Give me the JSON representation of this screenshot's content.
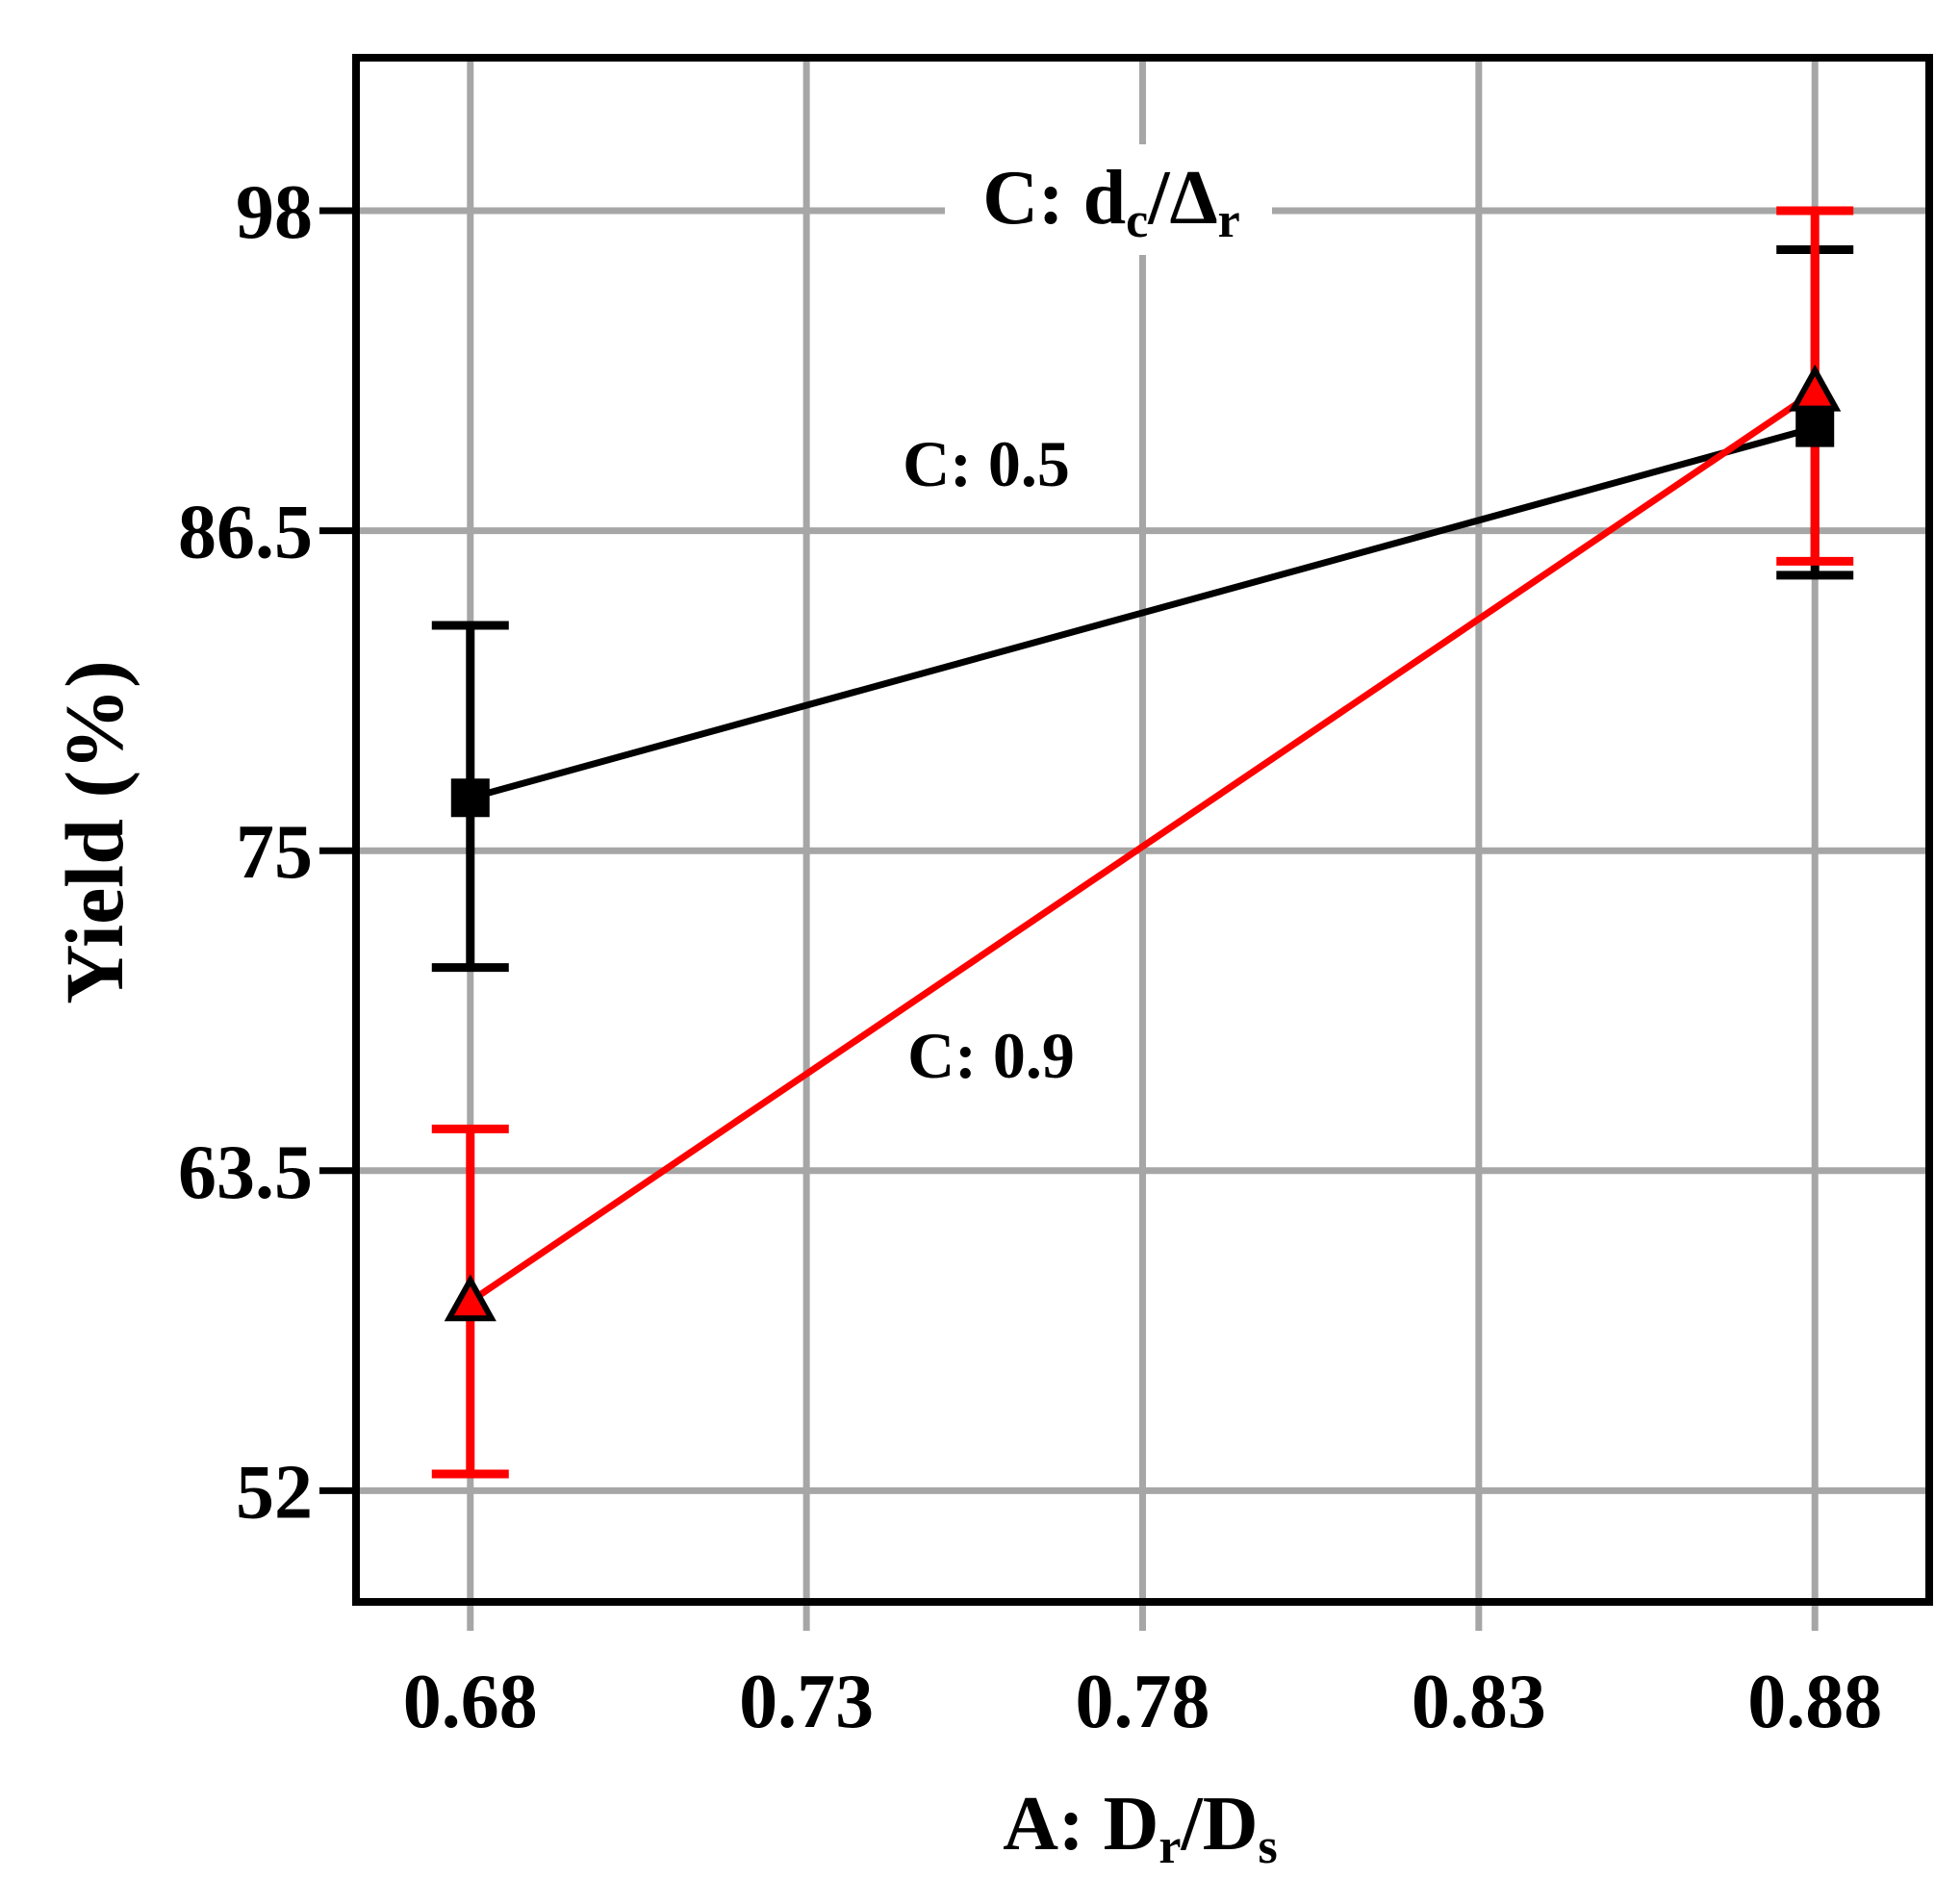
{
  "chart_data": {
    "type": "line",
    "title": "C: d_c/Δ_r",
    "title_parts": {
      "main": "C: d",
      "sub1": "c",
      "mid": "/Δ",
      "sub2": "r"
    },
    "xlabel": "A: D_r/D_s",
    "xlabel_parts": {
      "main": "A: D",
      "sub1": "r",
      "mid": "/D",
      "sub2": "s"
    },
    "ylabel": "Yield (%)",
    "x_ticks": [
      "0.68",
      "0.73",
      "0.78",
      "0.83",
      "0.88"
    ],
    "x_tick_values": [
      0.68,
      0.73,
      0.78,
      0.83,
      0.88
    ],
    "y_ticks": [
      "52",
      "63.5",
      "75",
      "86.5",
      "98"
    ],
    "y_tick_values": [
      52,
      63.5,
      75,
      86.5,
      98
    ],
    "xlim": [
      0.663,
      0.897
    ],
    "ylim": [
      48,
      103.5
    ],
    "grid": true,
    "series": [
      {
        "name": "C: 0.5",
        "color": "#000000",
        "marker": "square",
        "x": [
          0.68,
          0.88
        ],
        "y": [
          76.9,
          90.2
        ],
        "err_low": [
          70.8,
          84.9
        ],
        "err_high": [
          83.1,
          96.6
        ]
      },
      {
        "name": "C: 0.9",
        "color": "#ff0000",
        "marker": "triangle",
        "x": [
          0.68,
          0.88
        ],
        "y": [
          58.8,
          91.5
        ],
        "err_low": [
          52.6,
          85.4
        ],
        "err_high": [
          65.0,
          98.0
        ]
      }
    ]
  }
}
